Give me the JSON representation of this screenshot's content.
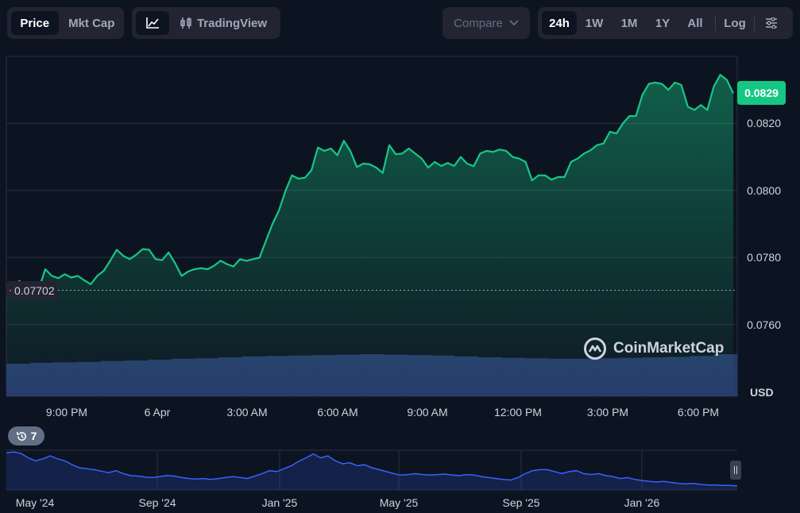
{
  "toolbar": {
    "price_tab": "Price",
    "mktcap_tab": "Mkt Cap",
    "tradingview_label": "TradingView",
    "compare_label": "Compare",
    "ranges": [
      "24h",
      "1W",
      "1M",
      "1Y",
      "All"
    ],
    "active_range": "24h",
    "log_label": "Log"
  },
  "chart_data": {
    "type": "line",
    "x_ticks": [
      "9:00 PM",
      "6 Apr",
      "3:00 AM",
      "6:00 AM",
      "9:00 AM",
      "12:00 PM",
      "3:00 PM",
      "6:00 PM"
    ],
    "y_ticks": [
      "0.0820",
      "0.0800",
      "0.0780",
      "0.0760"
    ],
    "y_ticks_num": [
      0.082,
      0.08,
      0.078,
      0.076
    ],
    "currency": "USD",
    "current_price": "0.0829",
    "open_price": "0.07702",
    "open_price_num": 0.07702,
    "ylim": [
      0.0749,
      0.084
    ],
    "grid": true,
    "line_color": "#16c784",
    "volume_color": "#283a6b",
    "series": [
      {
        "values": [
          0.077,
          0.07702,
          0.0773,
          0.07712,
          0.07705,
          0.07706,
          0.07765,
          0.07745,
          0.07738,
          0.0775,
          0.0774,
          0.07745,
          0.07732,
          0.0772,
          0.07745,
          0.0776,
          0.0779,
          0.07823,
          0.07805,
          0.07795,
          0.07808,
          0.07825,
          0.07823,
          0.07795,
          0.07792,
          0.07815,
          0.07783,
          0.07745,
          0.07758,
          0.07765,
          0.07768,
          0.07765,
          0.07775,
          0.0779,
          0.0778,
          0.07773,
          0.07795,
          0.0779,
          0.07795,
          0.07799,
          0.0785,
          0.079,
          0.0794,
          0.07998,
          0.08045,
          0.08035,
          0.08038,
          0.0806,
          0.08128,
          0.08118,
          0.08125,
          0.08105,
          0.08148,
          0.08118,
          0.0807,
          0.0808,
          0.08078,
          0.08068,
          0.08052,
          0.08135,
          0.08108,
          0.0811,
          0.08125,
          0.0811,
          0.08095,
          0.08068,
          0.08085,
          0.08073,
          0.08082,
          0.08073,
          0.081,
          0.0808,
          0.08072,
          0.0811,
          0.08118,
          0.08115,
          0.08122,
          0.08118,
          0.081,
          0.08095,
          0.08085,
          0.0803,
          0.08045,
          0.08045,
          0.08032,
          0.0804,
          0.0804,
          0.08085,
          0.08095,
          0.0811,
          0.0812,
          0.08135,
          0.0814,
          0.08175,
          0.0817,
          0.082,
          0.08222,
          0.08222,
          0.08285,
          0.08318,
          0.08322,
          0.08318,
          0.083,
          0.08322,
          0.08315,
          0.0825,
          0.0824,
          0.08255,
          0.0824,
          0.0831,
          0.08345,
          0.0833,
          0.0829
        ]
      },
      {
        "name": "volume",
        "values": [
          0.76,
          0.78,
          0.79,
          0.8,
          0.82,
          0.83,
          0.85,
          0.87,
          0.88,
          0.9,
          0.92,
          0.93,
          0.94,
          0.95,
          0.96,
          0.97,
          0.96,
          0.95,
          0.94,
          0.92,
          0.9,
          0.89,
          0.88,
          0.87,
          0.87,
          0.88,
          0.89,
          0.9,
          0.91,
          0.93,
          0.97
        ]
      }
    ]
  },
  "mini_chart": {
    "x_ticks": [
      "May '24",
      "Sep '24",
      "Jan '25",
      "May '25",
      "Sep '25",
      "Jan '26"
    ],
    "line_color": "#3861fb",
    "values": [
      0.72,
      0.74,
      0.71,
      0.62,
      0.56,
      0.6,
      0.66,
      0.6,
      0.56,
      0.48,
      0.42,
      0.4,
      0.38,
      0.35,
      0.32,
      0.36,
      0.3,
      0.26,
      0.25,
      0.23,
      0.22,
      0.24,
      0.26,
      0.25,
      0.22,
      0.2,
      0.19,
      0.2,
      0.18,
      0.2,
      0.22,
      0.24,
      0.22,
      0.2,
      0.25,
      0.3,
      0.36,
      0.34,
      0.4,
      0.46,
      0.55,
      0.62,
      0.7,
      0.62,
      0.66,
      0.56,
      0.5,
      0.52,
      0.46,
      0.48,
      0.42,
      0.38,
      0.34,
      0.3,
      0.27,
      0.28,
      0.3,
      0.28,
      0.27,
      0.28,
      0.29,
      0.27,
      0.26,
      0.28,
      0.27,
      0.24,
      0.22,
      0.2,
      0.18,
      0.17,
      0.22,
      0.3,
      0.36,
      0.38,
      0.38,
      0.34,
      0.3,
      0.34,
      0.36,
      0.3,
      0.28,
      0.3,
      0.26,
      0.24,
      0.2,
      0.22,
      0.18,
      0.16,
      0.14,
      0.13,
      0.14,
      0.12,
      0.1,
      0.09,
      0.1,
      0.08,
      0.07,
      0.07,
      0.06,
      0.06,
      0.05
    ]
  },
  "events": {
    "count": "7"
  },
  "watermark": "CoinMarketCap"
}
